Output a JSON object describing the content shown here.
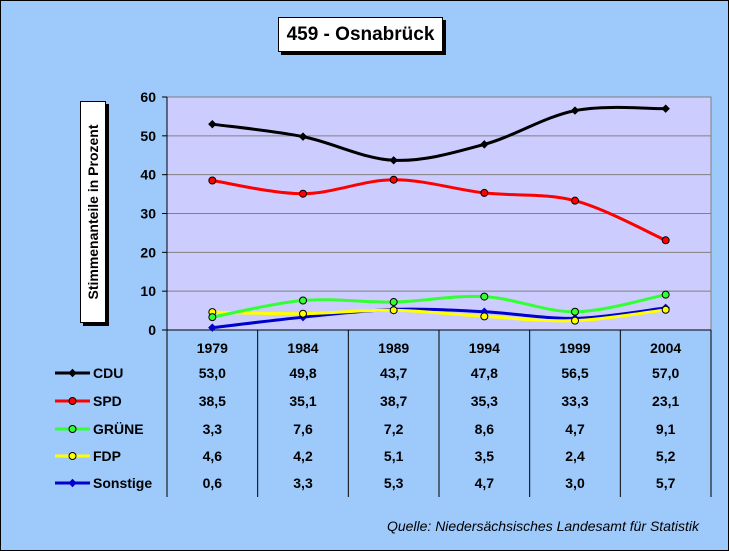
{
  "chart_data": {
    "type": "line",
    "title": "459 - Osnabrück",
    "ylabel": "Stimmenanteile in Prozent",
    "xlabel": "",
    "ylim": [
      0,
      60
    ],
    "yticks": [
      0,
      10,
      20,
      30,
      40,
      50,
      60
    ],
    "categories": [
      "1979",
      "1984",
      "1989",
      "1994",
      "1999",
      "2004"
    ],
    "series": [
      {
        "name": "CDU",
        "values": [
          53.0,
          49.8,
          43.7,
          47.8,
          56.5,
          57.0
        ],
        "labels": [
          "53,0",
          "49,8",
          "43,7",
          "47,8",
          "56,5",
          "57,0"
        ],
        "color": "#000000",
        "marker": "diamond"
      },
      {
        "name": "SPD",
        "values": [
          38.5,
          35.1,
          38.7,
          35.3,
          33.3,
          23.1
        ],
        "labels": [
          "38,5",
          "35,1",
          "38,7",
          "35,3",
          "33,3",
          "23,1"
        ],
        "color": "#ff0000",
        "marker": "circle"
      },
      {
        "name": "GRÜNE",
        "values": [
          3.3,
          7.6,
          7.2,
          8.6,
          4.7,
          9.1
        ],
        "labels": [
          "3,3",
          "7,6",
          "7,2",
          "8,6",
          "4,7",
          "9,1"
        ],
        "color": "#33ff33",
        "marker": "circle"
      },
      {
        "name": "FDP",
        "values": [
          4.6,
          4.2,
          5.1,
          3.5,
          2.4,
          5.2
        ],
        "labels": [
          "4,6",
          "4,2",
          "5,1",
          "3,5",
          "2,4",
          "5,2"
        ],
        "color": "#ffff00",
        "marker": "circle"
      },
      {
        "name": "Sonstige",
        "values": [
          0.6,
          3.3,
          5.3,
          4.7,
          3.0,
          5.7
        ],
        "labels": [
          "0,6",
          "3,3",
          "5,3",
          "4,7",
          "3,0",
          "5,7"
        ],
        "color": "#0000cc",
        "marker": "diamond"
      }
    ],
    "plot_background": "#ccccff",
    "background": "#9dc9fb",
    "grid": "horizontal",
    "legend": "data-table-below"
  },
  "source_note": "Quelle: Niedersächsisches Landesamt für Statistik"
}
